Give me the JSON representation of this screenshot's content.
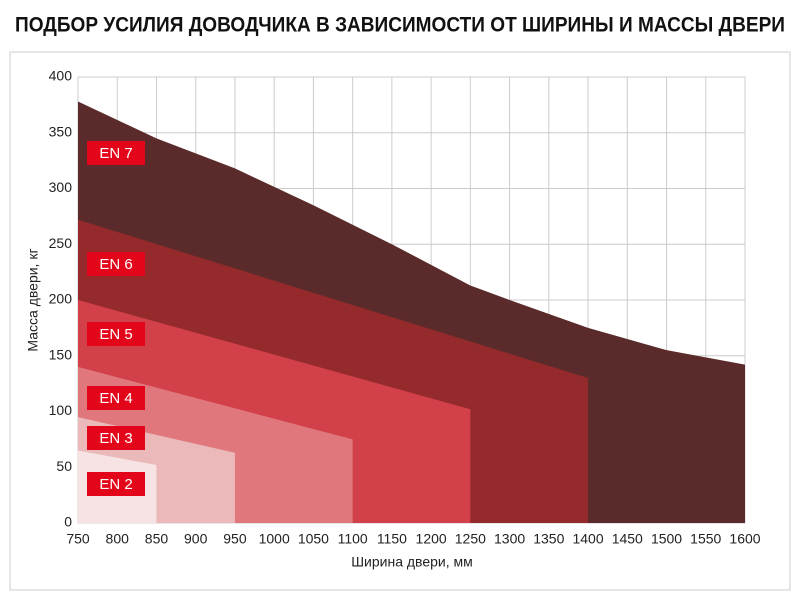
{
  "chart_data": {
    "type": "area",
    "title": "ПОДБОР УСИЛИЯ ДОВОДЧИКА В ЗАВИСИМОСТИ ОТ ШИРИНЫ И МАССЫ ДВЕРИ",
    "x_label": "Ширина двери, мм",
    "y_label": "Масса двери, кг",
    "xlim": [
      750,
      1600
    ],
    "xticks": [
      750,
      800,
      850,
      900,
      950,
      1000,
      1050,
      1100,
      1150,
      1200,
      1250,
      1300,
      1350,
      1400,
      1450,
      1500,
      1550,
      1600
    ],
    "ylim": [
      0,
      400
    ],
    "yticks": [
      0,
      50,
      100,
      150,
      200,
      250,
      300,
      350,
      400
    ],
    "grid": true,
    "label_color": "#e3061b",
    "series": [
      {
        "name": "EN 2",
        "color": "#f7e3e3",
        "x": [
          750,
          850
        ],
        "values": [
          65,
          52
        ]
      },
      {
        "name": "EN 3",
        "color": "#ebb9b9",
        "x": [
          750,
          950
        ],
        "values": [
          95,
          63
        ]
      },
      {
        "name": "EN 4",
        "color": "#e0777d",
        "x": [
          750,
          1100
        ],
        "values": [
          140,
          75
        ]
      },
      {
        "name": "EN 5",
        "color": "#d2404a",
        "x": [
          750,
          1250
        ],
        "values": [
          200,
          102
        ]
      },
      {
        "name": "EN 6",
        "color": "#952a2c",
        "x": [
          750,
          1400
        ],
        "values": [
          272,
          130
        ]
      },
      {
        "name": "EN 7",
        "color": "#5a2b2a",
        "x": [
          750,
          850,
          950,
          1050,
          1150,
          1250,
          1300,
          1400,
          1500,
          1600
        ],
        "values": [
          378,
          345,
          318,
          285,
          250,
          213,
          200,
          175,
          155,
          142
        ]
      }
    ]
  }
}
